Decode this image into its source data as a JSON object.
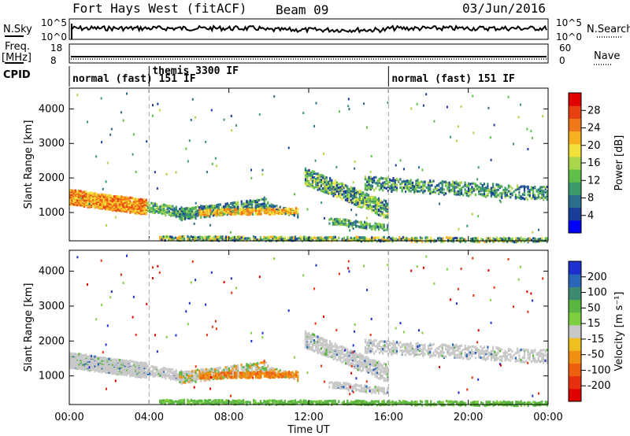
{
  "header": {
    "station": "Fort Hays West (fitACF)",
    "beam": "Beam 09",
    "date": "03/Jun/2016"
  },
  "top_panels": {
    "nsky_label": "N.Sky",
    "nsearch_label": "N.Search",
    "nsky_ticks": [
      "10^5",
      "10^0"
    ],
    "nsearch_ticks": [
      "10^5",
      "10^0"
    ],
    "freq_label": "Freq.",
    "freq_unit": "[MHz]",
    "freq_ticks": [
      "18",
      "8"
    ],
    "nave_label": "Nave",
    "nave_ticks": [
      "60",
      "0"
    ],
    "cpid_label": "CPID",
    "modes": [
      {
        "start_hour": 0,
        "text": "normal (fast) 151 IF"
      },
      {
        "start_hour": 4,
        "text": "themis 3300 IF"
      },
      {
        "start_hour": 16,
        "text": "normal (fast) 151 IF"
      }
    ]
  },
  "chart_data": [
    {
      "type": "heatmap",
      "name": "power",
      "xlabel": "",
      "ylabel": "Slant Range [km]",
      "xlim": [
        0,
        24
      ],
      "ylim": [
        180,
        4600
      ],
      "yticks": [
        "1000",
        "2000",
        "3000",
        "4000"
      ],
      "colorbar": {
        "label": "Power [dB]",
        "ticks": [
          "4",
          "8",
          "12",
          "16",
          "20",
          "24",
          "28"
        ],
        "colors": [
          "#0000ff",
          "#1a3d9a",
          "#2c6e8a",
          "#3c9a6a",
          "#5fbf4a",
          "#a9d64a",
          "#f2e03a",
          "#f6b020",
          "#f07818",
          "#e84010",
          "#e00000"
        ]
      }
    },
    {
      "type": "heatmap",
      "name": "velocity",
      "xlabel": "Time UT",
      "ylabel": "Slant Range [km]",
      "xlim": [
        0,
        24
      ],
      "ylim": [
        180,
        4600
      ],
      "yticks": [
        "1000",
        "2000",
        "3000",
        "4000"
      ],
      "xticks": [
        "00:00",
        "04:00",
        "08:00",
        "12:00",
        "16:00",
        "20:00",
        "00:00"
      ],
      "colorbar": {
        "label": "Velocity [m s⁻¹]",
        "ticks": [
          "200",
          "100",
          "50",
          "15",
          "-15",
          "-50",
          "-100",
          "-200"
        ],
        "colors": [
          "#1e2fd0",
          "#2a66b8",
          "#3d8a70",
          "#5ab640",
          "#7ed040",
          "#c8c8c8",
          "#f0c020",
          "#f09010",
          "#ec6010",
          "#e83010",
          "#e00000"
        ]
      }
    }
  ],
  "time_axis_label": "Time UT"
}
